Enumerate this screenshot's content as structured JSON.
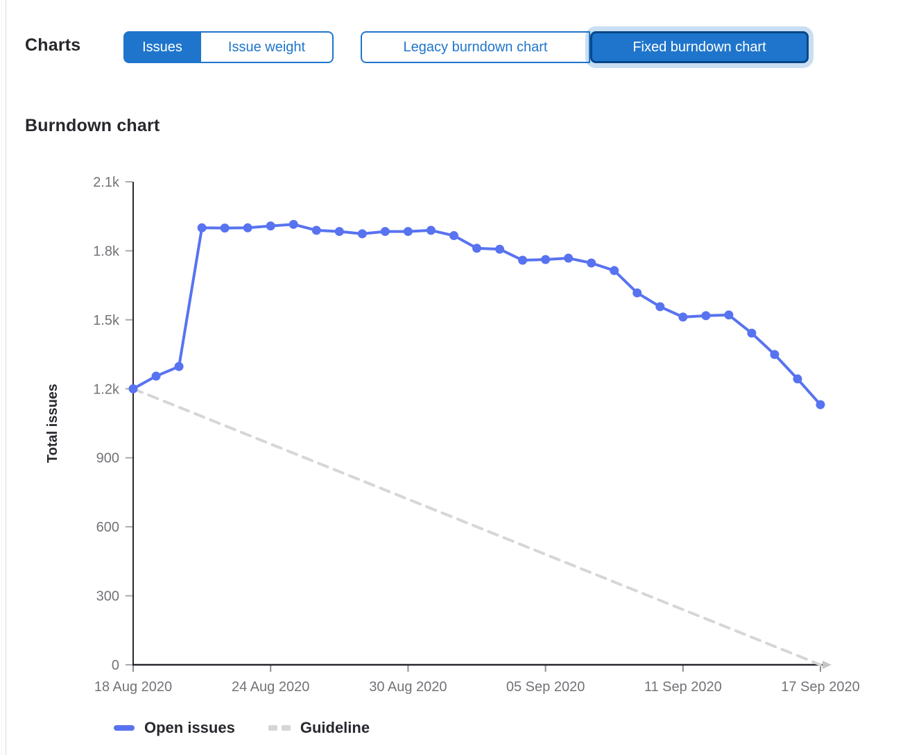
{
  "page": {
    "charts_label": "Charts"
  },
  "controls": {
    "metric_toggle": {
      "options": [
        {
          "label": "Issues",
          "selected": true
        },
        {
          "label": "Issue weight",
          "selected": false
        }
      ]
    },
    "chart_type_toggle": {
      "options": [
        {
          "label": "Legacy burndown chart",
          "selected": false
        },
        {
          "label": "Fixed burndown chart",
          "selected": true
        }
      ]
    }
  },
  "section": {
    "title": "Burndown chart"
  },
  "colors": {
    "accent": "#1f75cb",
    "accent_border_dark": "#064787",
    "focus_ring": "rgba(31,117,203,0.24)",
    "axis": "#28272d",
    "tick": "#a9a9ae",
    "tick_label": "#737278",
    "axis_arrow": "#c6c6ca",
    "open_issues_line": "#5873f0",
    "guideline": "#d6d6d6"
  },
  "chart_data": {
    "type": "line",
    "title": "Burndown chart",
    "xlabel": "",
    "ylabel": "Total issues",
    "ylim": [
      0,
      2100
    ],
    "grid": false,
    "legend_position": "bottom",
    "x": [
      "18 Aug 2020",
      "19 Aug 2020",
      "20 Aug 2020",
      "21 Aug 2020",
      "22 Aug 2020",
      "23 Aug 2020",
      "24 Aug 2020",
      "25 Aug 2020",
      "26 Aug 2020",
      "27 Aug 2020",
      "28 Aug 2020",
      "29 Aug 2020",
      "30 Aug 2020",
      "31 Aug 2020",
      "01 Sep 2020",
      "02 Sep 2020",
      "03 Sep 2020",
      "04 Sep 2020",
      "05 Sep 2020",
      "06 Sep 2020",
      "07 Sep 2020",
      "08 Sep 2020",
      "09 Sep 2020",
      "10 Sep 2020",
      "11 Sep 2020",
      "12 Sep 2020",
      "13 Sep 2020",
      "14 Sep 2020",
      "15 Sep 2020",
      "16 Sep 2020",
      "17 Sep 2020"
    ],
    "xtick_indices": [
      0,
      6,
      12,
      18,
      24,
      30
    ],
    "xtick_labels": [
      "18 Aug 2020",
      "24 Aug 2020",
      "30 Aug 2020",
      "05 Sep 2020",
      "11 Sep 2020",
      "17 Sep 2020"
    ],
    "ytick_values": [
      0,
      300,
      600,
      900,
      1200,
      1500,
      1800,
      2100
    ],
    "ytick_labels": [
      "0",
      "300",
      "600",
      "900",
      "1.2k",
      "1.5k",
      "1.8k",
      "2.1k"
    ],
    "series": [
      {
        "name": "Open issues",
        "type": "line",
        "style": "solid",
        "color": "#5873f0",
        "values": [
          1200,
          1255,
          1297,
          1900,
          1899,
          1900,
          1908,
          1915,
          1889,
          1884,
          1874,
          1884,
          1884,
          1889,
          1866,
          1811,
          1807,
          1759,
          1762,
          1768,
          1747,
          1714,
          1617,
          1557,
          1512,
          1518,
          1521,
          1442,
          1349,
          1243,
          1131
        ]
      },
      {
        "name": "Guideline",
        "type": "line",
        "style": "dashed",
        "color": "#d6d6d6",
        "endpoints": {
          "start_value": 1200,
          "end_value": 0
        }
      }
    ]
  }
}
